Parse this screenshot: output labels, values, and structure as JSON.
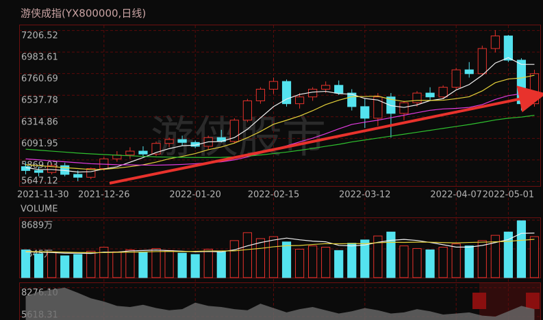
{
  "chart_data": [
    {
      "type": "candlestick",
      "title": "游侠成指(YX800000,日线)",
      "annotation": "游侠股市",
      "categories": [
        "2021-11-30",
        null,
        null,
        null,
        null,
        null,
        "2021-12-26",
        null,
        null,
        null,
        null,
        null,
        null,
        "2022-01-20",
        null,
        null,
        null,
        null,
        null,
        "2022-02-15",
        null,
        null,
        null,
        null,
        null,
        null,
        "2022-03-12",
        null,
        null,
        null,
        null,
        null,
        null,
        "2022-04-07",
        null,
        null,
        null,
        "2022-05-01",
        null,
        null
      ],
      "open": [
        5800,
        5760,
        5740,
        5810,
        5720,
        5690,
        5780,
        5880,
        5920,
        5960,
        5930,
        6040,
        6080,
        6050,
        6010,
        6100,
        6060,
        6280,
        6480,
        6600,
        6680,
        6450,
        6520,
        6600,
        6640,
        6560,
        6420,
        6300,
        6520,
        6350,
        6460,
        6560,
        6520,
        6620,
        6800,
        6760,
        7020,
        7150,
        6900,
        6450
      ],
      "high": [
        5850,
        5800,
        5830,
        5840,
        5760,
        5790,
        5900,
        5960,
        6000,
        6010,
        6060,
        6100,
        6120,
        6070,
        6120,
        6180,
        6300,
        6500,
        6620,
        6720,
        6700,
        6560,
        6620,
        6680,
        6690,
        6600,
        6500,
        6560,
        6560,
        6480,
        6580,
        6620,
        6640,
        6820,
        6880,
        7050,
        7210,
        7160,
        6920,
        6800
      ],
      "low": [
        5720,
        5700,
        5720,
        5700,
        5650,
        5670,
        5760,
        5850,
        5880,
        5900,
        5910,
        6000,
        6020,
        5990,
        5980,
        6050,
        6040,
        6260,
        6450,
        6550,
        6420,
        6400,
        6480,
        6560,
        6540,
        6380,
        6200,
        6220,
        6100,
        6280,
        6420,
        6480,
        6500,
        6600,
        6720,
        6740,
        6980,
        6880,
        6380,
        6420
      ],
      "close": [
        5760,
        5740,
        5810,
        5720,
        5690,
        5780,
        5880,
        5920,
        5960,
        5930,
        6040,
        6080,
        6050,
        6010,
        6100,
        6060,
        6280,
        6480,
        6600,
        6680,
        6450,
        6520,
        6600,
        6640,
        6560,
        6420,
        6300,
        6520,
        6350,
        6460,
        6560,
        6520,
        6620,
        6800,
        6760,
        7020,
        7150,
        6900,
        6450,
        6760
      ],
      "up_color": "#e8322c",
      "down_color": "#54e3ef",
      "series": [
        {
          "color": "#f2f2f2",
          "values": [
            5790,
            5770,
            5770,
            5760,
            5744,
            5748,
            5776,
            5798,
            5846,
            5894,
            5946,
            5986,
            6016,
            6022,
            6056,
            6060,
            6100,
            6186,
            6304,
            6420,
            6498,
            6546,
            6570,
            6578,
            6554,
            6548,
            6504,
            6488,
            6430,
            6412,
            6438,
            6482,
            6502,
            6592,
            6648,
            6744,
            6870,
            6926,
            6856,
            6856
          ]
        },
        {
          "color": "#e6d23a",
          "values": [
            5820,
            5810,
            5800,
            5790,
            5780,
            5770,
            5772,
            5784,
            5800,
            5819,
            5847,
            5881,
            5906,
            5935,
            5975,
            6003,
            6043,
            6099,
            6163,
            6238,
            6279,
            6323,
            6378,
            6441,
            6486,
            6522,
            6524,
            6528,
            6495,
            6473,
            6484,
            6484,
            6486,
            6502,
            6522,
            6582,
            6667,
            6705,
            6716,
            6744
          ]
        },
        {
          "color": "#e23ce0",
          "values": [
            5880,
            5870,
            5860,
            5850,
            5840,
            5830,
            5825,
            5820,
            5818,
            5816,
            5815,
            5818,
            5823,
            5830,
            5840,
            5850,
            5870,
            5900,
            5940,
            5981,
            6015,
            6055,
            6094,
            6140,
            6190,
            6236,
            6259,
            6280,
            6305,
            6331,
            6357,
            6382,
            6396,
            6402,
            6412,
            6441,
            6494,
            6534,
            6553,
            6578
          ]
        },
        {
          "color": "#2fc22f",
          "values": [
            5980,
            5970,
            5960,
            5950,
            5940,
            5932,
            5925,
            5918,
            5912,
            5906,
            5900,
            5898,
            5896,
            5895,
            5895,
            5896,
            5900,
            5908,
            5920,
            5935,
            5950,
            5968,
            5988,
            6010,
            6030,
            6055,
            6075,
            6095,
            6115,
            6135,
            6155,
            6175,
            6195,
            6215,
            6235,
            6258,
            6282,
            6300,
            6312,
            6330
          ]
        }
      ],
      "ylim": [
        5600,
        7260
      ],
      "yticks": [
        7206.52,
        6983.61,
        6760.69,
        6537.78,
        6314.86,
        6091.95,
        5869.03,
        5647.12
      ],
      "grid": true
    },
    {
      "type": "bar",
      "title": "VOLUME",
      "up_color": "#e8322c",
      "down_color": "#54e3ef",
      "values": [
        4200,
        3600,
        3900,
        3300,
        3500,
        4000,
        4600,
        3900,
        4200,
        3800,
        4400,
        4100,
        3700,
        3500,
        4300,
        3900,
        5600,
        6800,
        5900,
        6200,
        5400,
        4300,
        4800,
        4600,
        4100,
        5200,
        5700,
        6300,
        6900,
        4800,
        4400,
        4200,
        4600,
        5100,
        4800,
        5600,
        6400,
        6900,
        8600,
        6200
      ],
      "series": [
        {
          "color": "#f2f2f2",
          "values": [
            3900,
            3850,
            3800,
            3700,
            3700,
            3660,
            3860,
            3860,
            4040,
            4100,
            4180,
            4080,
            4000,
            3900,
            3960,
            3900,
            4200,
            4800,
            5300,
            5680,
            5980,
            5720,
            5520,
            5420,
            4880,
            4800,
            4940,
            5340,
            5640,
            5780,
            5620,
            5320,
            4980,
            4620,
            4620,
            4860,
            5300,
            5760,
            6700,
            6740
          ]
        },
        {
          "color": "#e6d23a",
          "values": [
            3950,
            3920,
            3900,
            3850,
            3800,
            3780,
            3780,
            3830,
            3850,
            3880,
            3940,
            3970,
            3930,
            3970,
            4030,
            4040,
            4050,
            4250,
            4420,
            4660,
            4820,
            4860,
            5010,
            5140,
            5120,
            5150,
            5130,
            5280,
            5350,
            5330,
            5370,
            5360,
            5300,
            5250,
            5320,
            5360,
            5420,
            5480,
            5650,
            5790
          ]
        }
      ],
      "ylim": [
        0,
        9000
      ],
      "yticks": [
        {
          "value": 8689,
          "label": "8689万"
        },
        {
          "value": 4345,
          "label": "4345万"
        }
      ],
      "grid": true
    },
    {
      "type": "area",
      "color": "#6a6a6a",
      "values": [
        7500,
        7900,
        8100,
        8276.1,
        7800,
        7300,
        7000,
        6600,
        6500,
        6700,
        6400,
        6200,
        6300,
        6900,
        6600,
        6500,
        6300,
        6200,
        6800,
        6400,
        6000,
        6300,
        6500,
        6200,
        5900,
        6100,
        6400,
        6200,
        5900,
        6000,
        6300,
        6100,
        5800,
        5900,
        6000,
        5700,
        5618.31,
        6100,
        6600,
        6300
      ],
      "ylim": [
        5300,
        8700
      ],
      "yticks": [
        {
          "value": 8276.1,
          "label": "8276.10"
        },
        {
          "value": 5618.31,
          "label": "5618.31"
        }
      ],
      "grid": true
    }
  ]
}
